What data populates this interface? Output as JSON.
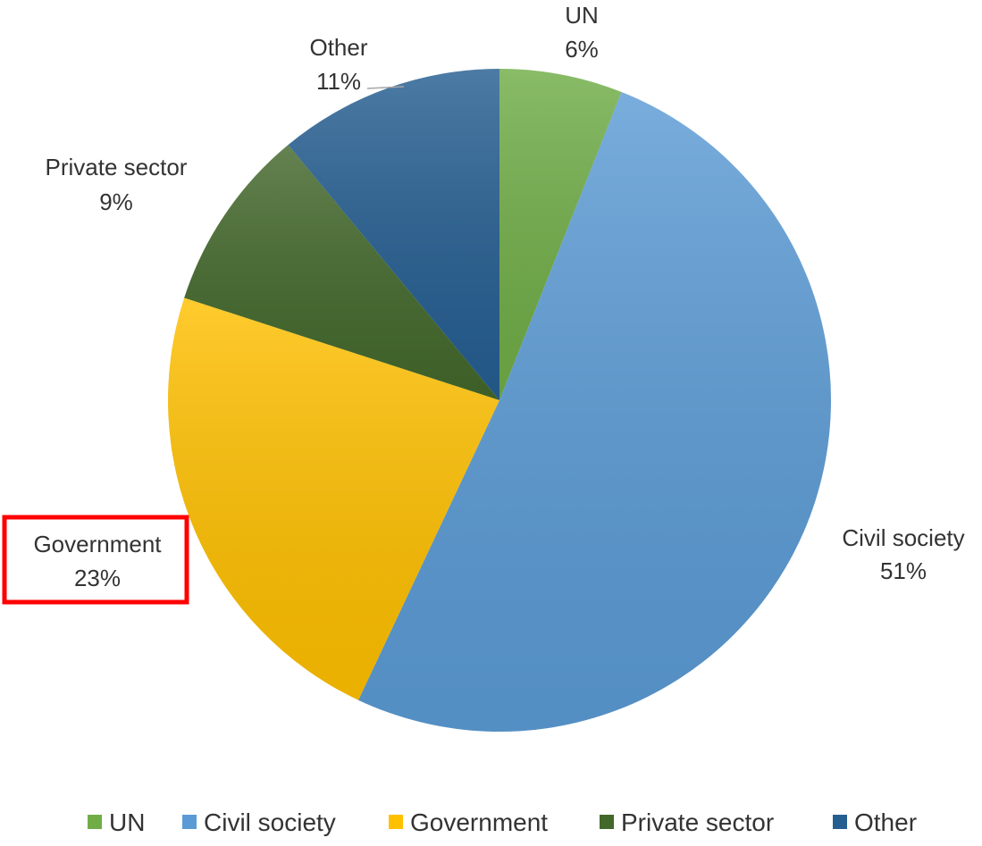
{
  "chart_data": {
    "type": "pie",
    "title": "",
    "slices": [
      {
        "name": "UN",
        "value": 6,
        "label": "6%",
        "color": "#70AD47"
      },
      {
        "name": "Civil society",
        "value": 51,
        "label": "51%",
        "color": "#5B9BD5"
      },
      {
        "name": "Government",
        "value": 23,
        "label": "23%",
        "color": "#FFC000"
      },
      {
        "name": "Private sector",
        "value": 9,
        "label": "9%",
        "color": "#43682B"
      },
      {
        "name": "Other",
        "value": 11,
        "label": "11%",
        "color": "#255E91"
      }
    ],
    "legend_position": "bottom",
    "highlighted_label": "Government"
  },
  "colors": {
    "highlight_box": "#FF0000",
    "label_text": "#333333"
  }
}
